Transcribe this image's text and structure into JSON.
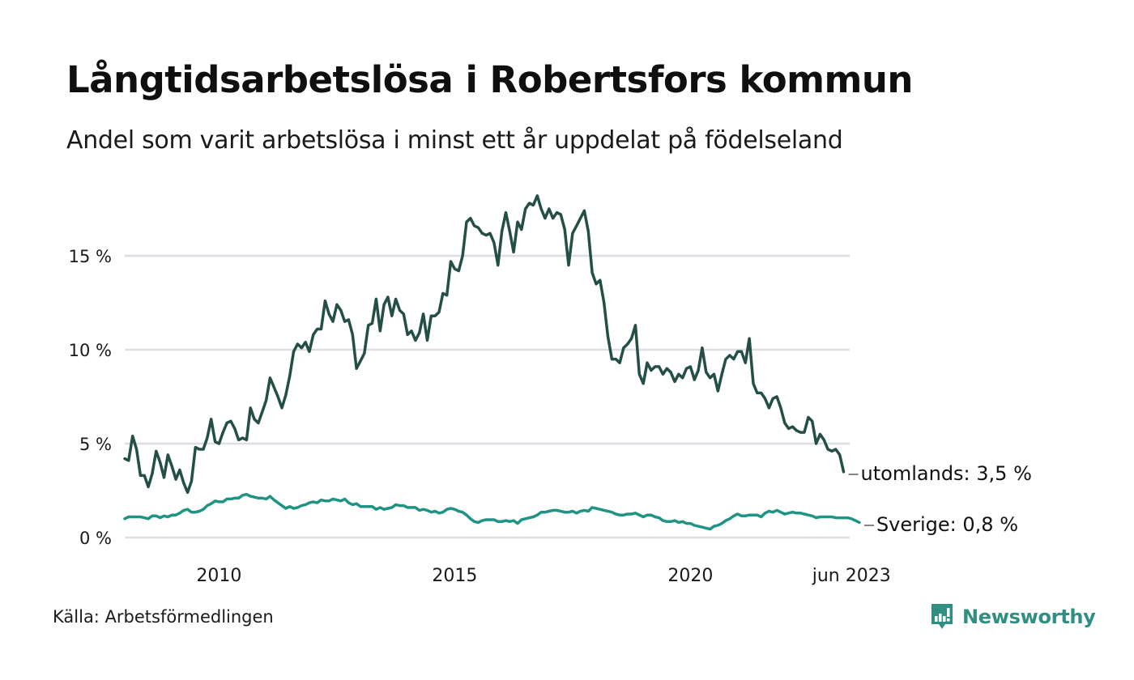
{
  "header": {
    "title": "Långtidsarbetslösa i Robertsfors kommun",
    "subtitle": "Andel som varit arbetslösa i minst ett år uppdelat på födelseland"
  },
  "footer": {
    "source": "Källa: Arbetsförmedlingen",
    "brand": "Newsworthy",
    "brand_icon": "newsworthy-logo-icon",
    "brand_color": "#2f8f83"
  },
  "chart_data": {
    "type": "line",
    "title": "Långtidsarbetslösa i Robertsfors kommun",
    "subtitle": "Andel som varit arbetslösa i minst ett år uppdelat på födelseland",
    "xlabel": "",
    "ylabel": "",
    "x_start": "2008-01",
    "x_end": "2023-06",
    "x_ticks": [
      {
        "label": "2010",
        "month_index": 24
      },
      {
        "label": "2015",
        "month_index": 84
      },
      {
        "label": "2020",
        "month_index": 144
      },
      {
        "label": "jun 2023",
        "month_index": 185
      }
    ],
    "y_ticks": [
      {
        "label": "0 %",
        "value": 0
      },
      {
        "label": "5 %",
        "value": 5
      },
      {
        "label": "10 %",
        "value": 10
      },
      {
        "label": "15 %",
        "value": 15
      }
    ],
    "ylim": [
      0,
      18.5
    ],
    "grid": true,
    "legend": "end-of-line labels (right)",
    "values_note": "Monthly values are approximate, estimated visually from the rendered line against gridlines (about ±0.2 pp per point). Only the end-point labels are exact.",
    "series": [
      {
        "name": "utomlands",
        "end_label": "utomlands: 3,5 %",
        "color": "#234f47",
        "values_are_estimates": true,
        "values": [
          4.2,
          4.1,
          5.4,
          4.7,
          3.3,
          3.3,
          2.7,
          3.4,
          4.6,
          4.0,
          3.2,
          4.4,
          3.8,
          3.1,
          3.6,
          2.9,
          2.4,
          3.0,
          4.8,
          4.7,
          4.7,
          5.3,
          6.3,
          5.1,
          5.0,
          5.6,
          6.1,
          6.2,
          5.8,
          5.2,
          5.3,
          5.2,
          6.9,
          6.3,
          6.1,
          6.7,
          7.3,
          8.5,
          8.0,
          7.5,
          6.9,
          7.6,
          8.6,
          9.9,
          10.3,
          10.1,
          10.4,
          9.9,
          10.8,
          11.1,
          11.1,
          12.6,
          11.9,
          11.5,
          12.4,
          12.1,
          11.5,
          11.6,
          10.8,
          9.0,
          9.4,
          9.8,
          11.3,
          11.4,
          12.7,
          11.0,
          12.4,
          12.8,
          11.8,
          12.7,
          12.1,
          11.9,
          10.8,
          11.0,
          10.5,
          10.9,
          11.9,
          10.5,
          11.8,
          11.8,
          12.0,
          13.0,
          12.9,
          14.7,
          14.3,
          14.2,
          15.0,
          16.8,
          17.0,
          16.6,
          16.5,
          16.2,
          16.1,
          16.2,
          15.7,
          14.5,
          16.3,
          17.3,
          16.3,
          15.2,
          16.8,
          16.4,
          17.5,
          17.8,
          17.7,
          18.2,
          17.5,
          17.0,
          17.5,
          17.0,
          17.3,
          17.2,
          16.4,
          14.5,
          16.2,
          16.6,
          17.0,
          17.4,
          16.3,
          14.1,
          13.5,
          13.7,
          12.5,
          10.7,
          9.5,
          9.5,
          9.3,
          10.1,
          10.3,
          10.6,
          11.3,
          8.7,
          8.2,
          9.3,
          8.9,
          9.1,
          9.1,
          8.7,
          9.0,
          8.8,
          8.3,
          8.7,
          8.5,
          9.0,
          9.1,
          8.4,
          8.9,
          10.1,
          8.8,
          8.5,
          8.7,
          7.8,
          8.7,
          9.5,
          9.7,
          9.5,
          9.9,
          9.9,
          9.3,
          10.6,
          8.2,
          7.7,
          7.7,
          7.4,
          6.9,
          7.4,
          7.5,
          6.9,
          6.1,
          5.8,
          5.9,
          5.7,
          5.6,
          5.6,
          6.4,
          6.2,
          5.0,
          5.5,
          5.2,
          4.7,
          4.6,
          4.7,
          4.4,
          3.5
        ]
      },
      {
        "name": "Sverige",
        "end_label": "Sverige: 0,8 %",
        "color": "#1f9484",
        "values_are_estimates": true,
        "values": [
          1.0,
          1.1,
          1.1,
          1.1,
          1.1,
          1.05,
          1.0,
          1.15,
          1.15,
          1.05,
          1.15,
          1.1,
          1.2,
          1.2,
          1.3,
          1.45,
          1.5,
          1.35,
          1.35,
          1.4,
          1.5,
          1.7,
          1.8,
          1.95,
          1.9,
          1.9,
          2.05,
          2.05,
          2.1,
          2.1,
          2.25,
          2.3,
          2.2,
          2.15,
          2.1,
          2.1,
          2.05,
          2.2,
          2.0,
          1.85,
          1.7,
          1.55,
          1.65,
          1.55,
          1.6,
          1.7,
          1.75,
          1.85,
          1.9,
          1.85,
          2.0,
          1.95,
          1.95,
          2.05,
          2.0,
          1.95,
          2.05,
          1.85,
          1.75,
          1.8,
          1.65,
          1.65,
          1.65,
          1.65,
          1.5,
          1.6,
          1.5,
          1.55,
          1.6,
          1.75,
          1.7,
          1.7,
          1.6,
          1.6,
          1.6,
          1.45,
          1.5,
          1.45,
          1.35,
          1.4,
          1.3,
          1.35,
          1.5,
          1.55,
          1.5,
          1.4,
          1.35,
          1.2,
          1.0,
          0.85,
          0.8,
          0.9,
          0.95,
          0.95,
          0.95,
          0.85,
          0.85,
          0.9,
          0.85,
          0.9,
          0.75,
          0.95,
          1.0,
          1.05,
          1.1,
          1.2,
          1.35,
          1.35,
          1.4,
          1.45,
          1.45,
          1.4,
          1.35,
          1.35,
          1.4,
          1.3,
          1.4,
          1.45,
          1.4,
          1.6,
          1.55,
          1.5,
          1.45,
          1.4,
          1.35,
          1.25,
          1.2,
          1.2,
          1.25,
          1.25,
          1.3,
          1.2,
          1.1,
          1.2,
          1.2,
          1.1,
          1.05,
          0.9,
          0.85,
          0.85,
          0.9,
          0.8,
          0.85,
          0.75,
          0.75,
          0.65,
          0.6,
          0.55,
          0.5,
          0.45,
          0.6,
          0.65,
          0.75,
          0.9,
          1.0,
          1.15,
          1.25,
          1.15,
          1.15,
          1.2,
          1.2,
          1.2,
          1.1,
          1.3,
          1.4,
          1.35,
          1.45,
          1.35,
          1.25,
          1.3,
          1.35,
          1.3,
          1.3,
          1.25,
          1.2,
          1.15,
          1.05,
          1.1,
          1.1,
          1.1,
          1.1,
          1.05,
          1.05,
          1.05,
          1.05,
          1.0,
          0.9,
          0.8
        ]
      }
    ]
  }
}
